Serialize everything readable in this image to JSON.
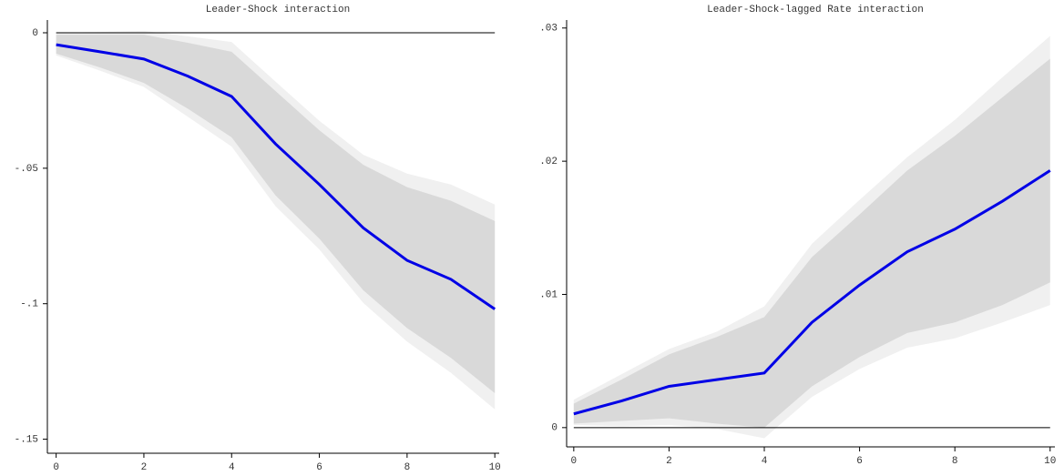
{
  "chart_data": [
    {
      "type": "line",
      "title": "Leader-Shock interaction",
      "x": [
        0,
        1,
        2,
        3,
        4,
        5,
        6,
        7,
        8,
        9,
        10
      ],
      "xlim": [
        -0.2,
        10.1
      ],
      "xticks": [
        0,
        2,
        4,
        6,
        8,
        10
      ],
      "ylim": [
        -0.1525,
        0.0047
      ],
      "yticks": [
        {
          "value": 0,
          "label": "0"
        },
        {
          "value": -0.05,
          "label": "-.05"
        },
        {
          "value": -0.1,
          "label": "-.1"
        },
        {
          "value": -0.15,
          "label": "-.15"
        }
      ],
      "hline": 0,
      "bands": [
        {
          "color": "#f0f0f0",
          "upper": [
            0,
            0.0003,
            0.0007,
            -0.0013,
            -0.0034,
            -0.018,
            -0.0325,
            -0.045,
            -0.052,
            -0.056,
            -0.0634
          ],
          "lower": [
            -0.0084,
            -0.014,
            -0.02,
            -0.031,
            -0.042,
            -0.064,
            -0.08,
            -0.0997,
            -0.114,
            -0.1255,
            -0.139
          ]
        },
        {
          "color": "#d9d9d9",
          "upper": [
            -0.0007,
            -0.0007,
            -0.0007,
            -0.0037,
            -0.007,
            -0.0215,
            -0.036,
            -0.0487,
            -0.057,
            -0.062,
            -0.0695
          ],
          "lower": [
            -0.0077,
            -0.0128,
            -0.0185,
            -0.028,
            -0.0386,
            -0.06,
            -0.076,
            -0.095,
            -0.109,
            -0.12,
            -0.133
          ]
        }
      ],
      "series": [
        {
          "color": "#0000e6",
          "values": [
            -0.0044,
            -0.007,
            -0.0097,
            -0.016,
            -0.0235,
            -0.041,
            -0.056,
            -0.072,
            -0.084,
            -0.091,
            -0.102
          ]
        }
      ]
    },
    {
      "type": "line",
      "title": "Leader-Shock-lagged Rate interaction",
      "x": [
        0,
        1,
        2,
        3,
        4,
        5,
        6,
        7,
        8,
        9,
        10
      ],
      "xlim": [
        -0.15,
        10.1
      ],
      "xticks": [
        0,
        2,
        4,
        6,
        8,
        10
      ],
      "ylim": [
        -0.0009,
        0.0306
      ],
      "yticks": [
        0,
        {
          "value": 0.01,
          "label": ".01"
        },
        {
          "value": 0.02,
          "label": ".02"
        },
        {
          "value": 0.03,
          "label": ".03"
        }
      ],
      "hline": 0,
      "bands": [
        {
          "color": "#f0f0f0",
          "upper": [
            0.0021,
            0.004,
            0.0059,
            0.0072,
            0.0091,
            0.0138,
            0.0171,
            0.0203,
            0.0231,
            0.0263,
            0.0294
          ],
          "lower": [
            0.0002,
            0.0001,
            0.0002,
            -0.0001,
            -0.0008,
            0.0023,
            0.0044,
            0.006,
            0.0067,
            0.0079,
            0.0092
          ]
        },
        {
          "color": "#d9d9d9",
          "upper": [
            0.0018,
            0.0036,
            0.0055,
            0.0068,
            0.0083,
            0.0128,
            0.016,
            0.0193,
            0.0219,
            0.0248,
            0.0277
          ],
          "lower": [
            0.0003,
            0.0005,
            0.0007,
            0.0003,
            0,
            0.0031,
            0.0053,
            0.0071,
            0.0079,
            0.0092,
            0.0109
          ]
        }
      ],
      "series": [
        {
          "color": "#0000e6",
          "values": [
            0.00103,
            0.002,
            0.0031,
            0.0036,
            0.0041,
            0.0079,
            0.0107,
            0.0132,
            0.0149,
            0.017,
            0.0193
          ]
        }
      ]
    }
  ]
}
